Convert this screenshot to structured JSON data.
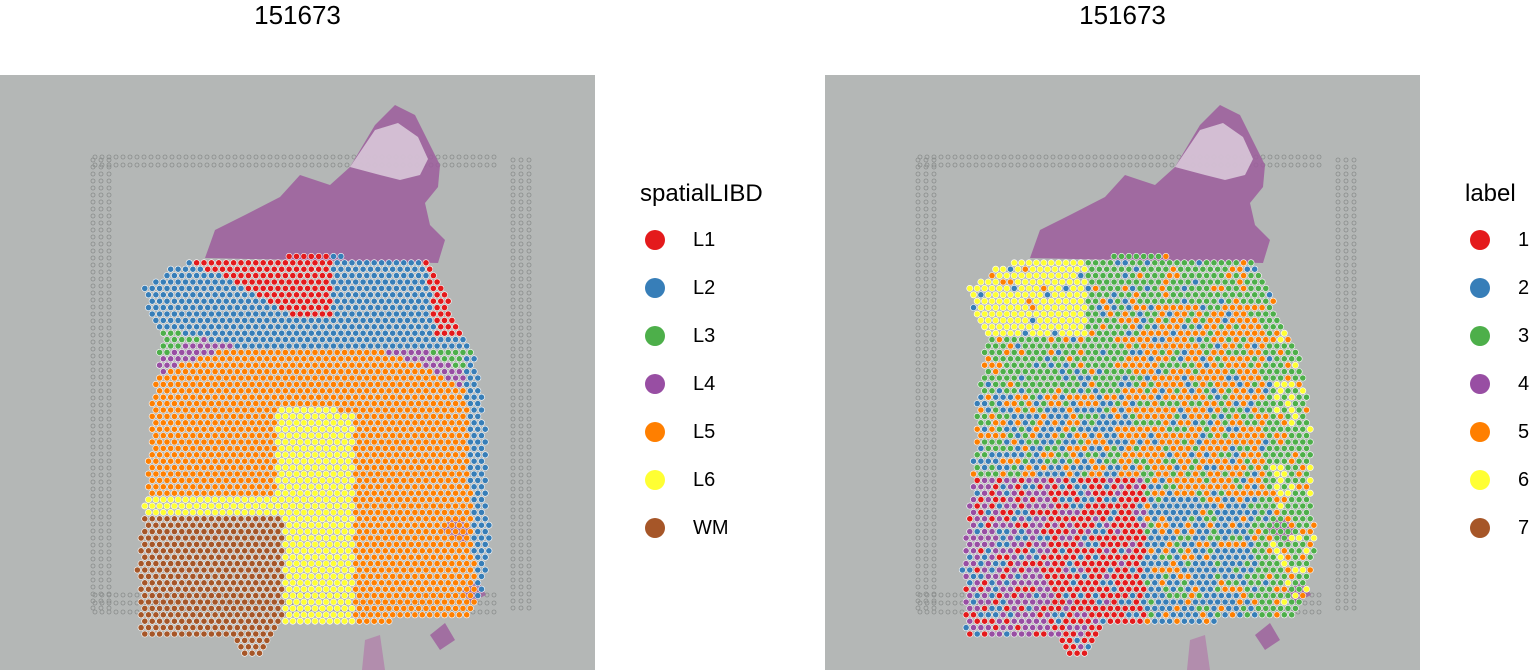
{
  "chart_data": [
    {
      "type": "scatter",
      "title": "151673",
      "legend": {
        "title": "spatialLIBD",
        "placement": "right",
        "entries": [
          {
            "label": "L1",
            "color": "#E41A1C"
          },
          {
            "label": "L2",
            "color": "#377EB8"
          },
          {
            "label": "L3",
            "color": "#4DAF4A"
          },
          {
            "label": "L4",
            "color": "#984EA3"
          },
          {
            "label": "L5",
            "color": "#FF7F00"
          },
          {
            "label": "L6",
            "color": "#FFFF33"
          },
          {
            "label": "WM",
            "color": "#A65628"
          }
        ]
      },
      "background": "H&E tissue image",
      "grid": false
    },
    {
      "type": "scatter",
      "title": "151673",
      "legend": {
        "title": "label",
        "placement": "right",
        "entries": [
          {
            "label": "1",
            "color": "#E41A1C"
          },
          {
            "label": "2",
            "color": "#377EB8"
          },
          {
            "label": "3",
            "color": "#4DAF4A"
          },
          {
            "label": "4",
            "color": "#984EA3"
          },
          {
            "label": "5",
            "color": "#FF7F00"
          },
          {
            "label": "6",
            "color": "#FFFF33"
          },
          {
            "label": "7",
            "color": "#A65628"
          }
        ]
      },
      "background": "H&E tissue image",
      "grid": false
    }
  ]
}
